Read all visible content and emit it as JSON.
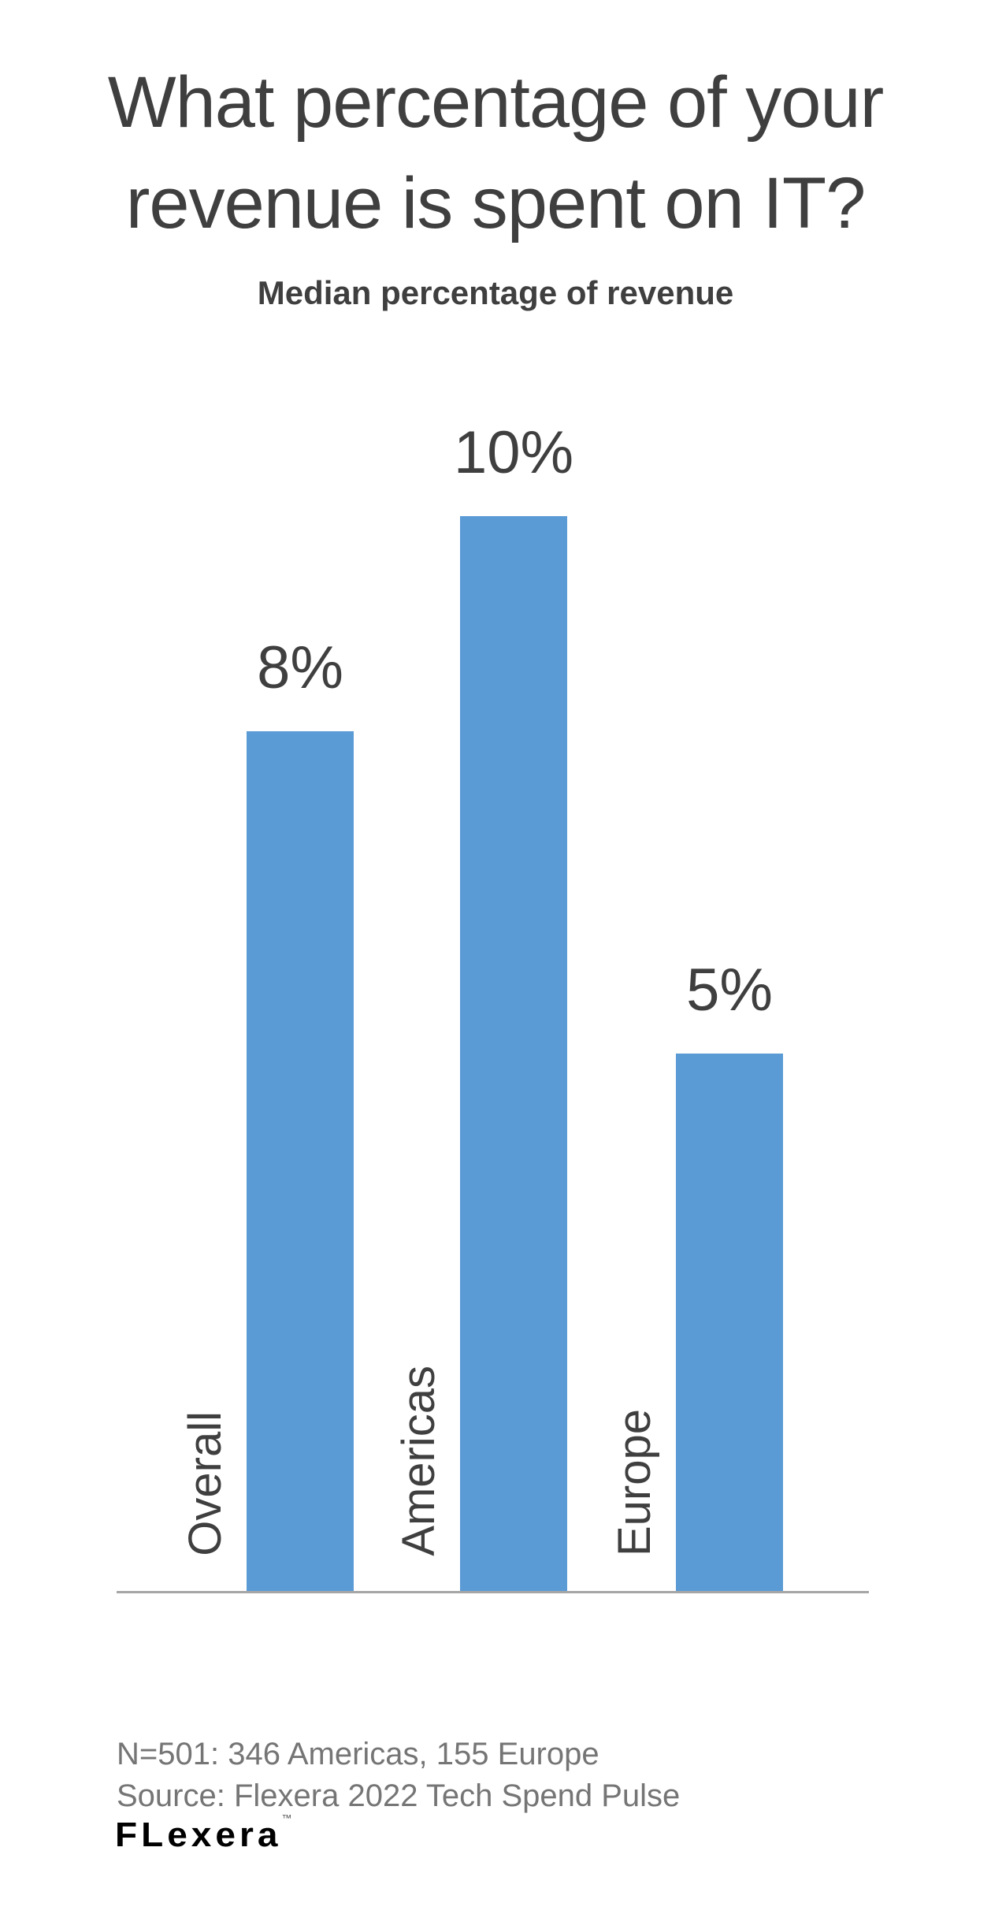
{
  "header": {
    "title": "What percentage of your revenue is spent on IT?",
    "title_lines": [
      "What percentage of your",
      "revenue is spent on IT?"
    ],
    "subtitle": "Median percentage of revenue"
  },
  "chart_data": {
    "type": "bar",
    "orientation": "vertical",
    "title": "What percentage of your revenue is spent on IT?",
    "subtitle": "Median percentage of revenue",
    "categories": [
      "Overall",
      "Americas",
      "Europe"
    ],
    "values": [
      8,
      10,
      5
    ],
    "value_labels": [
      "8%",
      "10%",
      "5%"
    ],
    "value_suffix": "%",
    "xlabel": "",
    "ylabel": "",
    "ylim": [
      0,
      10.4
    ],
    "grid": false,
    "legend": false,
    "y_axis_visible": false,
    "category_label_rotation": 90
  },
  "footer": {
    "note": "N=501: 346 Americas, 155 Europe",
    "source": "Source: Flexera 2022 Tech Spend Pulse",
    "logo_text": "FLexera",
    "logo_mark": "™"
  },
  "colors": {
    "bar": "#5B9BD5",
    "title_text": "#3F3F3F",
    "footer_text": "#757575",
    "axis_line": "#A6A6A6",
    "logo_text": "#000000"
  }
}
